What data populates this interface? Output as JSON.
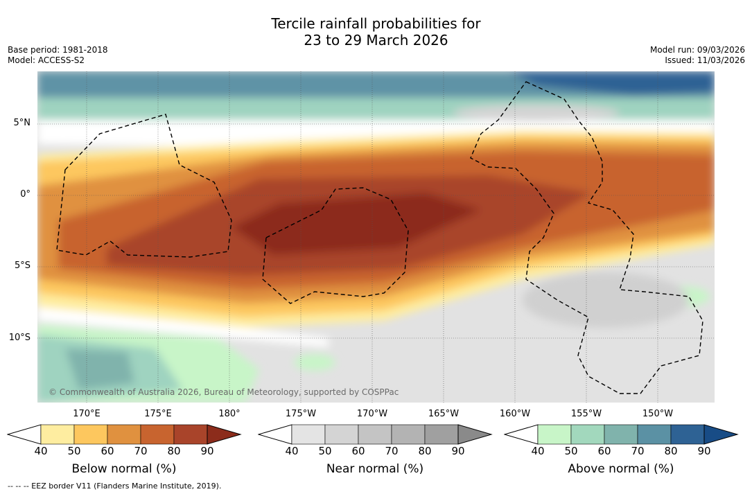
{
  "title_line1": "Tercile rainfall probabilities for",
  "title_line2": "23 to 29 March 2026",
  "meta_left": [
    "Base period: 1981-2018",
    "Model: ACCESS-S2"
  ],
  "meta_right": [
    "Model run: 09/03/2026",
    "Issued: 11/03/2026"
  ],
  "lat_labels": [
    "5°N",
    "0°",
    "5°S",
    "10°S"
  ],
  "lon_labels": [
    "170°E",
    "175°E",
    "180°",
    "175°W",
    "170°W",
    "165°W",
    "160°W",
    "155°W",
    "150°W"
  ],
  "credit": "© Commonwealth of Australia 2026, Bureau of Meteorology, supported by COSPPac",
  "colorbars": [
    {
      "label": "Below normal (%)",
      "ticks": [
        "40",
        "50",
        "60",
        "70",
        "80",
        "90"
      ],
      "colors": [
        "#ffffff",
        "#feeda0",
        "#fdc75e",
        "#e0913f",
        "#c8642f",
        "#a9442a",
        "#8c2c1b"
      ]
    },
    {
      "label": "Near normal (%)",
      "ticks": [
        "40",
        "50",
        "60",
        "70",
        "80",
        "90"
      ],
      "colors": [
        "#ffffff",
        "#e4e4e4",
        "#d4d4d4",
        "#c4c4c4",
        "#b3b3b3",
        "#a0a0a0",
        "#8a8a8a"
      ]
    },
    {
      "label": "Above normal (%)",
      "ticks": [
        "40",
        "50",
        "60",
        "70",
        "80",
        "90"
      ],
      "colors": [
        "#ffffff",
        "#c8f5c8",
        "#a2d8bd",
        "#80b3ac",
        "#5b91a4",
        "#2e6294",
        "#184c86"
      ]
    }
  ],
  "footer": "--  --  -- EEZ border V11 (Flanders Marine Institute, 2019)."
}
